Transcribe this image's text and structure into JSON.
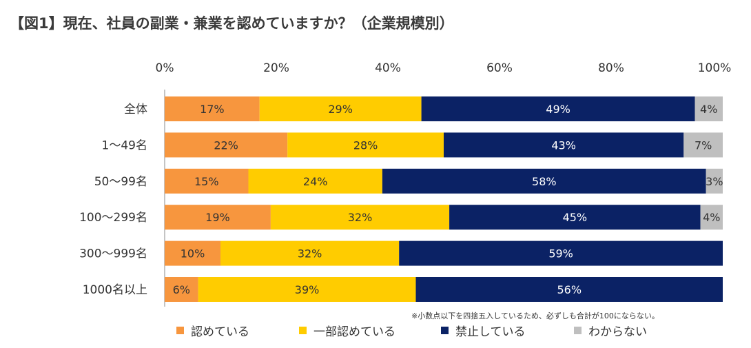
{
  "title": "【図1】現在、社員の副業・兼業を認めていますか？（企業規模別）",
  "note": "※小数点以下を四捨五入しているため、必ずしも合計が100にならない。",
  "chart_data": {
    "type": "bar",
    "orientation": "horizontal",
    "stacked": true,
    "xlim": [
      0,
      100
    ],
    "x_ticks": [
      "0%",
      "20%",
      "40%",
      "60%",
      "80%",
      "100%"
    ],
    "categories": [
      "全体",
      "1～49名",
      "50～99名",
      "100～299名",
      "300～999名",
      "1000名以上"
    ],
    "series": [
      {
        "name": "認めている",
        "color": "#F7963E",
        "values": [
          17,
          22,
          15,
          19,
          10,
          6
        ],
        "labels": [
          "17%",
          "22%",
          "15%",
          "19%",
          "10%",
          "6%"
        ]
      },
      {
        "name": "一部認めている",
        "color": "#FFCC00",
        "values": [
          29,
          28,
          24,
          32,
          32,
          39
        ],
        "labels": [
          "29%",
          "28%",
          "24%",
          "32%",
          "32%",
          "39%"
        ]
      },
      {
        "name": "禁止している",
        "color": "#0B2265",
        "values": [
          49,
          43,
          58,
          45,
          59,
          56
        ],
        "labels": [
          "49%",
          "43%",
          "58%",
          "45%",
          "59%",
          "56%"
        ]
      },
      {
        "name": "わからない",
        "color": "#BFBFBF",
        "values": [
          4,
          7,
          3,
          4,
          0,
          0
        ],
        "labels": [
          "4%",
          "7%",
          "3%",
          "4%",
          "",
          ""
        ]
      }
    ],
    "grid": false,
    "legend_position": "bottom"
  }
}
